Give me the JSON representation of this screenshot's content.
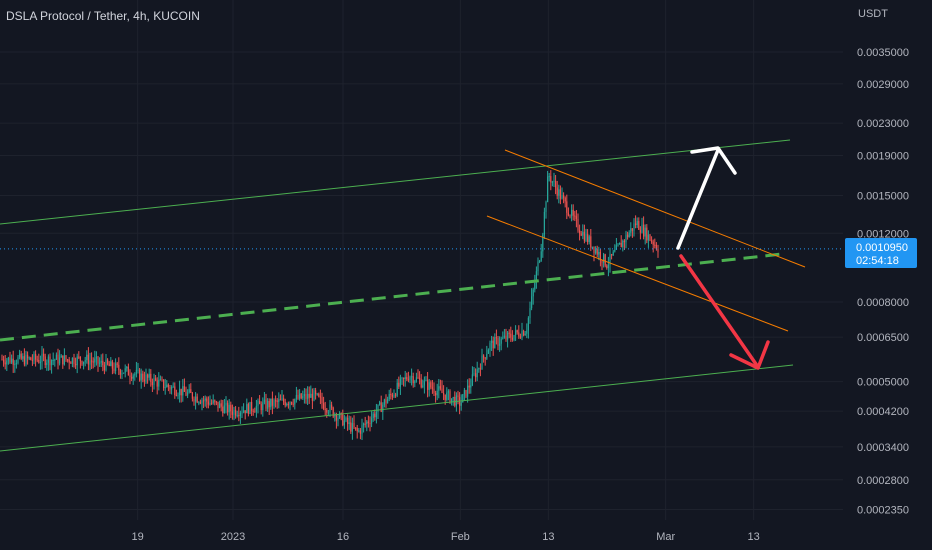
{
  "chart_data": {
    "type": "candlestick",
    "title": "DSLA Protocol / Tether, 4h, KUCOIN",
    "y_unit": "USDT",
    "y_scale": "log",
    "ylim": [
      0.0002,
      0.0043
    ],
    "y_ticks": [
      "0.0035000",
      "0.0029000",
      "0.0023000",
      "0.0019000",
      "0.0015000",
      "0.0012000",
      "0.0008000",
      "0.0006500",
      "0.0005000",
      "0.0004200",
      "0.0003400",
      "0.0002800",
      "0.0002350"
    ],
    "x_ticks": [
      "19",
      "2023",
      "16",
      "Feb",
      "13",
      "Mar",
      "13"
    ],
    "last_price": "0.0010950",
    "countdown": "02:54:18",
    "colors": {
      "up": "#26a69a",
      "down": "#ef5350",
      "background": "#131722",
      "channel": "#4caf50",
      "wedge": "#f57c00",
      "arrow_up": "#ffffff",
      "arrow_down": "#f23645",
      "price_label": "#2196f3"
    },
    "candles_approx": [
      {
        "t": "2022-12-12",
        "close": 0.00057
      },
      {
        "t": "2022-12-19",
        "close": 0.00052
      },
      {
        "t": "2023-01-01",
        "close": 0.00042
      },
      {
        "t": "2023-01-12",
        "close": 0.00046
      },
      {
        "t": "2023-01-18",
        "close": 0.00037
      },
      {
        "t": "2023-01-25",
        "close": 0.00052
      },
      {
        "t": "2023-02-01",
        "close": 0.00044
      },
      {
        "t": "2023-02-05",
        "close": 0.00062
      },
      {
        "t": "2023-02-10",
        "close": 0.00068
      },
      {
        "t": "2023-02-12",
        "close": 0.0011
      },
      {
        "t": "2023-02-13",
        "close": 0.0017
      },
      {
        "t": "2023-02-17",
        "close": 0.00125
      },
      {
        "t": "2023-02-21",
        "close": 0.001
      },
      {
        "t": "2023-02-25",
        "close": 0.00128
      },
      {
        "t": "2023-02-28",
        "close": 0.0011
      }
    ]
  }
}
